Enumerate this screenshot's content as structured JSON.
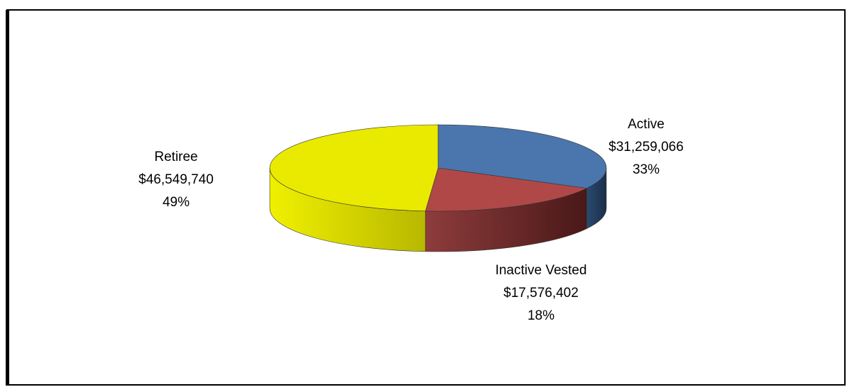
{
  "chart_data": {
    "type": "pie3d",
    "categories": [
      "Active",
      "Inactive Vested",
      "Retiree"
    ],
    "values": [
      31259066,
      17576402,
      46549740
    ],
    "value_labels": [
      "$31,259,066",
      "$17,576,402",
      "$46,549,740"
    ],
    "percents": [
      33,
      18,
      49
    ],
    "percent_labels": [
      "33%",
      "18%",
      "49%"
    ],
    "colors": [
      "#4a76ad",
      "#b04848",
      "#eaea00"
    ],
    "side_colors": [
      [
        "#2a4a70",
        "#1a2e48"
      ],
      [
        "#8e3c3c",
        "#4a1818"
      ],
      [
        "#f0f000",
        "#b8b800"
      ]
    ]
  }
}
